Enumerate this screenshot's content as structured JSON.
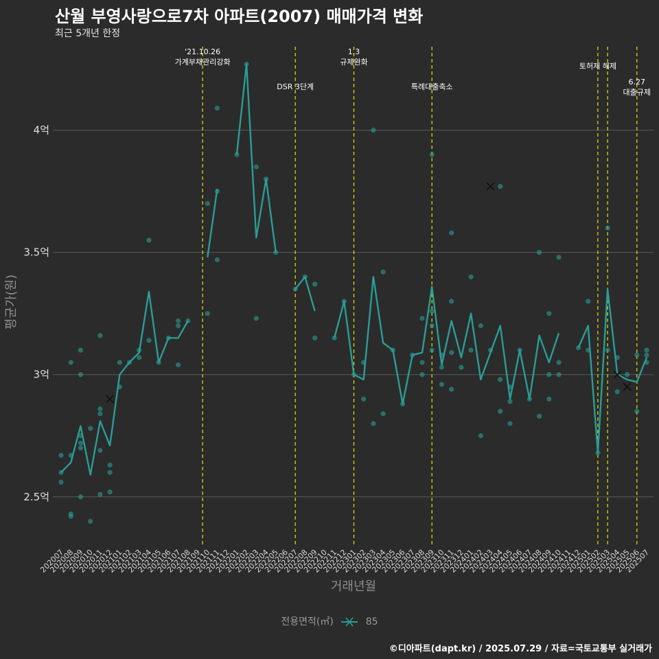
{
  "header": {
    "title": "산월 부영사랑으로7차 아파트(2007) 매매가격 변화",
    "subtitle": "최근 5개년 한정"
  },
  "legend": {
    "title": "전용면적(㎡)",
    "label": "85"
  },
  "caption": "©디아파트(dapt.kr) / 2025.07.29 / 자료=국토교통부 실거래가",
  "colors": {
    "background": "#2b2b2b",
    "series": "#2a9d96",
    "event_line": "#e6e600",
    "grid": "#5a5a5a"
  },
  "chart_data": {
    "type": "line",
    "xlabel": "거래년월",
    "ylabel": "평균가(원)",
    "ylim": [
      2.3,
      4.35
    ],
    "yticks": [
      {
        "value": 2.5,
        "label": "2.5억"
      },
      {
        "value": 3.0,
        "label": "3억"
      },
      {
        "value": 3.5,
        "label": "3.5억"
      },
      {
        "value": 4.0,
        "label": "4억"
      }
    ],
    "categories": [
      "202007",
      "202008",
      "202009",
      "202010",
      "202011",
      "202012",
      "202101",
      "202102",
      "202103",
      "202104",
      "202105",
      "202106",
      "202107",
      "202108",
      "202109",
      "202110",
      "202111",
      "202112",
      "202201",
      "202202",
      "202203",
      "202204",
      "202205",
      "202206",
      "202207",
      "202208",
      "202209",
      "202210",
      "202211",
      "202212",
      "202301",
      "202302",
      "202303",
      "202304",
      "202305",
      "202306",
      "202307",
      "202308",
      "202309",
      "202310",
      "202311",
      "202312",
      "202401",
      "202402",
      "202403",
      "202404",
      "202405",
      "202406",
      "202407",
      "202408",
      "202409",
      "202410",
      "202411",
      "202412",
      "202501",
      "202502",
      "202503",
      "202504",
      "202505",
      "202506",
      "202507"
    ],
    "series": [
      {
        "name": "85",
        "line_segments": [
          [
            [
              "202007",
              2.6
            ],
            [
              "202008",
              2.64
            ],
            [
              "202009",
              2.79
            ],
            [
              "202010",
              2.59
            ],
            [
              "202011",
              2.81
            ],
            [
              "202012",
              2.71
            ],
            [
              "202101",
              3.0
            ],
            [
              "202102",
              3.05
            ],
            [
              "202103",
              3.09
            ],
            [
              "202104",
              3.34
            ],
            [
              "202105",
              3.05
            ],
            [
              "202106",
              3.15
            ],
            [
              "202107",
              3.15
            ],
            [
              "202108",
              3.22
            ]
          ],
          [
            [
              "202110",
              3.48
            ],
            [
              "202111",
              3.76
            ]
          ],
          [
            [
              "202201",
              3.9
            ],
            [
              "202202",
              4.27
            ],
            [
              "202203",
              3.56
            ],
            [
              "202204",
              3.8
            ],
            [
              "202205",
              3.5
            ]
          ],
          [
            [
              "202207",
              3.35
            ],
            [
              "202208",
              3.4
            ],
            [
              "202209",
              3.26
            ]
          ],
          [
            [
              "202211",
              3.15
            ],
            [
              "202212",
              3.3
            ],
            [
              "202301",
              3.0
            ],
            [
              "202302",
              2.98
            ],
            [
              "202303",
              3.4
            ],
            [
              "202304",
              3.13
            ],
            [
              "202305",
              3.1
            ],
            [
              "202306",
              2.88
            ],
            [
              "202307",
              3.08
            ],
            [
              "202308",
              3.09
            ],
            [
              "202309",
              3.36
            ],
            [
              "202310",
              3.04
            ],
            [
              "202311",
              3.22
            ],
            [
              "202312",
              3.07
            ],
            [
              "202401",
              3.25
            ],
            [
              "202402",
              2.98
            ],
            [
              "202403",
              3.09
            ],
            [
              "202404",
              3.2
            ],
            [
              "202405",
              2.9
            ],
            [
              "202406",
              3.1
            ],
            [
              "202407",
              2.9
            ],
            [
              "202408",
              3.16
            ],
            [
              "202409",
              3.05
            ],
            [
              "202410",
              3.17
            ]
          ],
          [
            [
              "202412",
              3.11
            ],
            [
              "202501",
              3.2
            ],
            [
              "202502",
              2.68
            ],
            [
              "202503",
              3.35
            ],
            [
              "202504",
              3.0
            ],
            [
              "202505",
              2.98
            ],
            [
              "202506",
              2.97
            ],
            [
              "202507",
              3.07
            ]
          ]
        ],
        "points": [
          [
            "202007",
            2.67
          ],
          [
            "202007",
            2.6
          ],
          [
            "202007",
            2.56
          ],
          [
            "202008",
            3.05
          ],
          [
            "202008",
            2.67
          ],
          [
            "202008",
            2.43
          ],
          [
            "202008",
            2.42
          ],
          [
            "202009",
            3.1
          ],
          [
            "202009",
            3.0
          ],
          [
            "202009",
            2.75
          ],
          [
            "202009",
            2.72
          ],
          [
            "202009",
            2.7
          ],
          [
            "202009",
            2.5
          ],
          [
            "202010",
            2.78
          ],
          [
            "202010",
            2.4
          ],
          [
            "202011",
            3.16
          ],
          [
            "202011",
            2.86
          ],
          [
            "202011",
            2.84
          ],
          [
            "202011",
            2.69
          ],
          [
            "202011",
            2.51
          ],
          [
            "202012",
            2.63
          ],
          [
            "202012",
            2.6
          ],
          [
            "202012",
            2.52
          ],
          [
            "202101",
            3.05
          ],
          [
            "202101",
            2.95
          ],
          [
            "202102",
            3.05
          ],
          [
            "202103",
            3.1
          ],
          [
            "202103",
            3.07
          ],
          [
            "202104",
            3.55
          ],
          [
            "202104",
            3.14
          ],
          [
            "202105",
            3.05
          ],
          [
            "202106",
            3.15
          ],
          [
            "202107",
            3.22
          ],
          [
            "202107",
            3.2
          ],
          [
            "202107",
            3.04
          ],
          [
            "202108",
            3.22
          ],
          [
            "202110",
            3.7
          ],
          [
            "202110",
            3.25
          ],
          [
            "202111",
            4.09
          ],
          [
            "202111",
            3.75
          ],
          [
            "202111",
            3.47
          ],
          [
            "202201",
            3.9
          ],
          [
            "202202",
            4.27
          ],
          [
            "202203",
            3.85
          ],
          [
            "202203",
            3.23
          ],
          [
            "202204",
            3.8
          ],
          [
            "202205",
            3.5
          ],
          [
            "202207",
            3.35
          ],
          [
            "202208",
            3.4
          ],
          [
            "202209",
            3.37
          ],
          [
            "202209",
            3.15
          ],
          [
            "202211",
            3.15
          ],
          [
            "202212",
            3.3
          ],
          [
            "202301",
            3.0
          ],
          [
            "202302",
            3.05
          ],
          [
            "202302",
            2.9
          ],
          [
            "202303",
            4.0
          ],
          [
            "202303",
            2.8
          ],
          [
            "202304",
            3.42
          ],
          [
            "202304",
            2.84
          ],
          [
            "202305",
            3.1
          ],
          [
            "202306",
            2.88
          ],
          [
            "202307",
            3.08
          ],
          [
            "202308",
            3.23
          ],
          [
            "202308",
            3.05
          ],
          [
            "202308",
            3.0
          ],
          [
            "202309",
            3.9
          ],
          [
            "202309",
            3.26
          ],
          [
            "202309",
            3.2
          ],
          [
            "202309",
            3.1
          ],
          [
            "202310",
            3.08
          ],
          [
            "202310",
            3.03
          ],
          [
            "202310",
            2.96
          ],
          [
            "202311",
            3.58
          ],
          [
            "202311",
            3.3
          ],
          [
            "202311",
            3.09
          ],
          [
            "202311",
            2.94
          ],
          [
            "202312",
            3.03
          ],
          [
            "202401",
            3.4
          ],
          [
            "202401",
            3.1
          ],
          [
            "202402",
            3.2
          ],
          [
            "202402",
            2.75
          ],
          [
            "202403",
            3.1
          ],
          [
            "202404",
            3.77
          ],
          [
            "202404",
            2.98
          ],
          [
            "202404",
            2.85
          ],
          [
            "202405",
            2.95
          ],
          [
            "202405",
            2.89
          ],
          [
            "202405",
            2.8
          ],
          [
            "202406",
            3.1
          ],
          [
            "202407",
            2.9
          ],
          [
            "202408",
            3.5
          ],
          [
            "202408",
            2.83
          ],
          [
            "202409",
            3.25
          ],
          [
            "202409",
            3.0
          ],
          [
            "202409",
            2.9
          ],
          [
            "202410",
            3.48
          ],
          [
            "202410",
            3.05
          ],
          [
            "202410",
            3.0
          ],
          [
            "202412",
            3.11
          ],
          [
            "202501",
            3.3
          ],
          [
            "202501",
            3.1
          ],
          [
            "202502",
            2.68
          ],
          [
            "202503",
            3.6
          ],
          [
            "202503",
            3.1
          ],
          [
            "202504",
            3.07
          ],
          [
            "202504",
            2.93
          ],
          [
            "202505",
            3.0
          ],
          [
            "202506",
            3.08
          ],
          [
            "202506",
            2.85
          ],
          [
            "202507",
            3.1
          ],
          [
            "202507",
            3.08
          ],
          [
            "202507",
            3.05
          ]
        ],
        "x_markers": [
          [
            "202012",
            2.9
          ],
          [
            "202403",
            3.77
          ],
          [
            "202504",
            3.0
          ],
          [
            "202505",
            2.95
          ]
        ]
      }
    ],
    "events": [
      {
        "x": "202110",
        "offset": -0.5,
        "lines": [
          "'21.10.26",
          "가계부채관리강화"
        ],
        "row": 1
      },
      {
        "x": "202207",
        "offset": 0,
        "lines": [
          "DSR 3단계"
        ],
        "row": 2
      },
      {
        "x": "202301",
        "offset": 0,
        "lines": [
          "1.3",
          "규제완화"
        ],
        "row": 1
      },
      {
        "x": "202309",
        "offset": 0,
        "lines": [
          "특례대출축소"
        ],
        "row": 2
      },
      {
        "x": "202502",
        "offset": 0,
        "lines": [
          "토허제 해제"
        ],
        "row": 0
      },
      {
        "x": "202503",
        "offset": 0,
        "lines": [],
        "row": 0
      },
      {
        "x": "202506",
        "offset": 0,
        "lines": [
          "6.27",
          "대출규제"
        ],
        "row": 3
      }
    ]
  }
}
